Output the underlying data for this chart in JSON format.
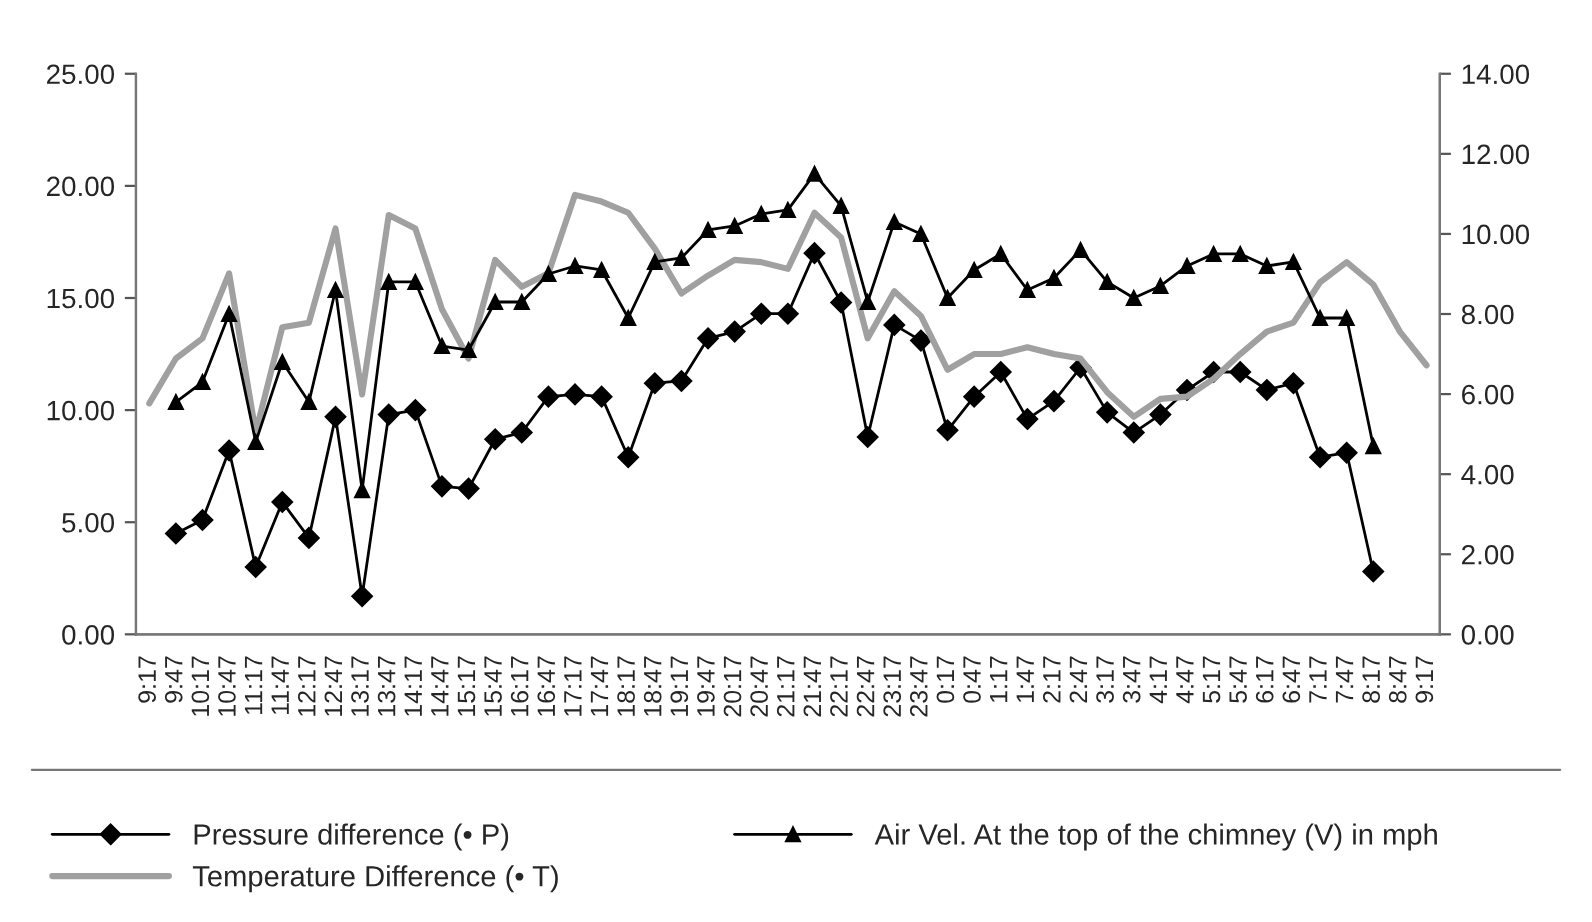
{
  "chart_data": {
    "type": "line",
    "categories": [
      "9:17",
      "9:47",
      "10:17",
      "10:47",
      "11:17",
      "11:47",
      "12:17",
      "12:47",
      "13:17",
      "13:47",
      "14:17",
      "14:47",
      "15:17",
      "15:47",
      "16:17",
      "16:47",
      "17:17",
      "17:47",
      "18:17",
      "18:47",
      "19:17",
      "19:47",
      "20:17",
      "20:47",
      "21:17",
      "21:47",
      "22:17",
      "22:47",
      "23:17",
      "23:47",
      "0:17",
      "0:47",
      "1:17",
      "1:47",
      "2:17",
      "2:47",
      "3:17",
      "3:47",
      "4:17",
      "4:47",
      "5:17",
      "5:47",
      "6:17",
      "6:47",
      "7:17",
      "7:47",
      "8:17",
      "8:47",
      "9:17"
    ],
    "series": [
      {
        "name": "Pressure difference (• P)",
        "color": "#000000",
        "marker": "diamond",
        "axis": "y",
        "values": [
          null,
          4.5,
          5.1,
          8.2,
          3.0,
          5.9,
          4.3,
          9.7,
          1.7,
          9.8,
          10.0,
          6.6,
          6.5,
          8.7,
          9.0,
          10.6,
          10.7,
          10.6,
          7.9,
          11.2,
          11.3,
          13.2,
          13.5,
          14.3,
          14.3,
          17.0,
          14.8,
          8.8,
          13.8,
          13.1,
          9.1,
          10.6,
          11.7,
          9.6,
          10.4,
          11.9,
          9.9,
          9.0,
          9.8,
          10.9,
          11.7,
          11.7,
          10.9,
          11.2,
          7.9,
          8.1,
          2.8,
          null,
          null
        ]
      },
      {
        "name": "Air Vel. At the top of the chimney (V) in mph",
        "color": "#000000",
        "marker": "triangle",
        "axis": "y2",
        "values": [
          null,
          5.8,
          6.3,
          8.0,
          4.8,
          6.8,
          5.8,
          8.6,
          3.6,
          8.8,
          8.8,
          7.2,
          7.1,
          8.3,
          8.3,
          9.0,
          9.2,
          9.1,
          7.9,
          9.3,
          9.4,
          10.1,
          10.2,
          10.5,
          10.6,
          11.5,
          10.7,
          8.3,
          10.3,
          10.0,
          8.4,
          9.1,
          9.5,
          8.6,
          8.9,
          9.6,
          8.8,
          8.4,
          8.7,
          9.2,
          9.5,
          9.5,
          9.2,
          9.3,
          7.9,
          7.9,
          4.7,
          null,
          null
        ]
      },
      {
        "name": "Temperature Difference (• T)",
        "color": "#a0a0a0",
        "marker": "none",
        "axis": "y",
        "values": [
          10.3,
          12.3,
          13.2,
          16.1,
          9.0,
          13.7,
          13.9,
          18.1,
          10.7,
          18.7,
          18.1,
          14.5,
          12.3,
          16.7,
          15.5,
          16.1,
          19.6,
          19.3,
          18.8,
          17.2,
          15.2,
          16.0,
          16.7,
          16.6,
          16.3,
          18.8,
          17.7,
          13.2,
          15.3,
          14.2,
          11.8,
          12.5,
          12.5,
          12.8,
          12.5,
          12.3,
          10.8,
          9.7,
          10.5,
          10.6,
          11.4,
          12.5,
          13.5,
          13.9,
          15.7,
          16.6,
          15.6,
          13.5,
          12.0
        ]
      }
    ],
    "ylim": [
      0,
      25
    ],
    "yticks": [
      {
        "value": 0,
        "label": "0.00"
      },
      {
        "value": 5,
        "label": "5.00"
      },
      {
        "value": 10,
        "label": "10.00"
      },
      {
        "value": 15,
        "label": "15.00"
      },
      {
        "value": 20,
        "label": "20.00"
      },
      {
        "value": 25,
        "label": "25.00"
      }
    ],
    "y2lim": [
      0,
      14
    ],
    "y2ticks": [
      {
        "value": 0,
        "label": "0.00"
      },
      {
        "value": 2,
        "label": "2.00"
      },
      {
        "value": 4,
        "label": "4.00"
      },
      {
        "value": 6,
        "label": "6.00"
      },
      {
        "value": 8,
        "label": "8.00"
      },
      {
        "value": 10,
        "label": "10.00"
      },
      {
        "value": 12,
        "label": "12.00"
      },
      {
        "value": 14,
        "label": "14.00"
      }
    ],
    "grid": false,
    "legend": "bottom",
    "line_style": "solid"
  }
}
